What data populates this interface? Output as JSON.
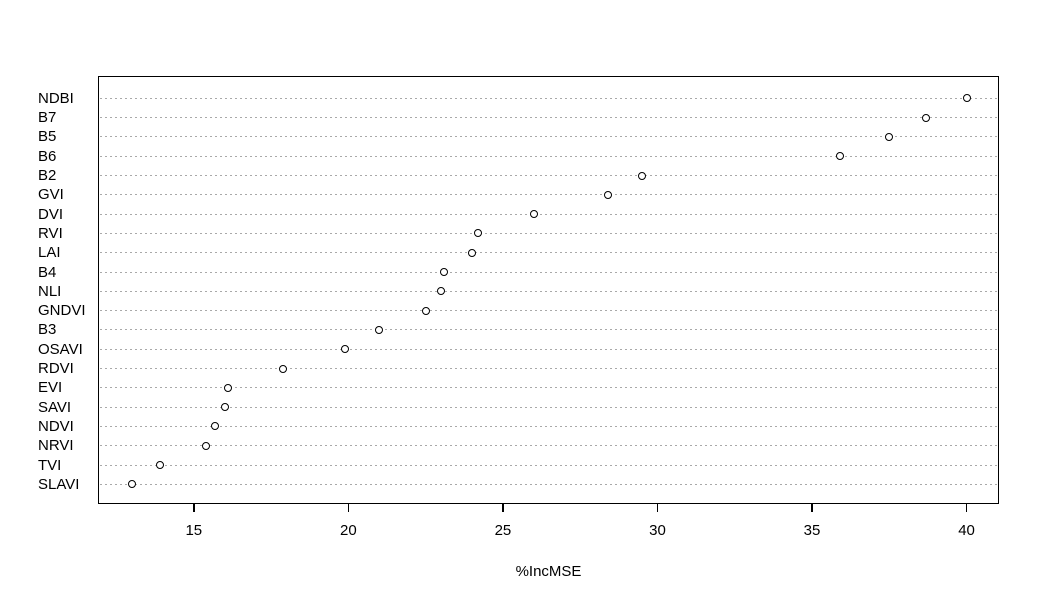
{
  "chart_data": {
    "type": "scatter",
    "variant": "dot-plot (R randomForest variable importance)",
    "title": "",
    "xlabel": "%IncMSE",
    "ylabel": "",
    "categories": [
      "NDBI",
      "B7",
      "B5",
      "B6",
      "B2",
      "GVI",
      "DVI",
      "RVI",
      "LAI",
      "B4",
      "NLI",
      "GNDVI",
      "B3",
      "OSAVI",
      "RDVI",
      "EVI",
      "SAVI",
      "NDVI",
      "NRVI",
      "TVI",
      "SLAVI"
    ],
    "values": [
      40.0,
      38.7,
      37.5,
      35.9,
      29.5,
      28.4,
      26.0,
      24.2,
      24.0,
      23.1,
      23.0,
      22.5,
      21.0,
      19.9,
      17.9,
      16.1,
      16.0,
      15.7,
      15.4,
      13.9,
      13.0
    ],
    "category_order": "top-to-bottom",
    "xlim": [
      11.9,
      41.05
    ],
    "x_ticks": [
      "15",
      "20",
      "25",
      "30",
      "35",
      "40"
    ],
    "grid": "horizontal dotted line per category",
    "legend": "none",
    "marker": "open-circle",
    "colors": {
      "background": "#ffffff",
      "box_border": "#000000",
      "gridline": "#a9a9a9",
      "marker_stroke": "#000000",
      "marker_fill": "#ffffff",
      "text": "#000000"
    }
  }
}
